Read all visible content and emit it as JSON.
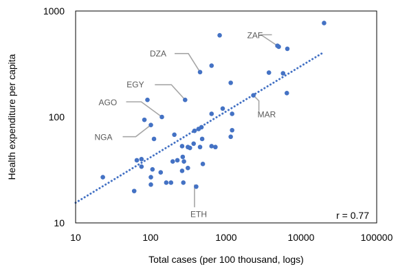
{
  "chart_data": {
    "type": "scatter",
    "xlabel": "Total cases (per 100 thousand, logs)",
    "ylabel": "Health expenditure per capita",
    "xscale": "log",
    "yscale": "log",
    "xlim": [
      10,
      100000
    ],
    "ylim": [
      10,
      1000
    ],
    "x_ticks": [
      "10",
      "100",
      "1000",
      "10000",
      "100000"
    ],
    "y_ticks": [
      "10",
      "100",
      "1000"
    ],
    "grid": false,
    "colors": {
      "points": "#4472c4",
      "trendline": "#4472c4",
      "annotation": "#a6a6a6",
      "frame": "#000000"
    },
    "trendline": {
      "style": "dotted",
      "x": [
        10,
        20000
      ],
      "y": [
        15.5,
        410
      ]
    },
    "correlation_label": "r = 0.77",
    "annotations": [
      {
        "label": "ZAF",
        "x": 4800,
        "y": 470
      },
      {
        "label": "DZA",
        "x": 450,
        "y": 265
      },
      {
        "label": "EGY",
        "x": 285,
        "y": 145
      },
      {
        "label": "AGO",
        "x": 140,
        "y": 100
      },
      {
        "label": "NGA",
        "x": 100,
        "y": 84
      },
      {
        "label": "MAR",
        "x": 2300,
        "y": 160
      },
      {
        "label": "ETH",
        "x": 380,
        "y": 23
      }
    ],
    "points": [
      [
        20000,
        770
      ],
      [
        820,
        590
      ],
      [
        4800,
        470
      ],
      [
        5000,
        460
      ],
      [
        6500,
        440
      ],
      [
        640,
        305
      ],
      [
        450,
        265
      ],
      [
        3700,
        262
      ],
      [
        5700,
        258
      ],
      [
        1150,
        210
      ],
      [
        6400,
        168
      ],
      [
        2300,
        160
      ],
      [
        285,
        145
      ],
      [
        90,
        145
      ],
      [
        900,
        120
      ],
      [
        640,
        107
      ],
      [
        1200,
        107
      ],
      [
        140,
        100
      ],
      [
        82,
        94
      ],
      [
        100,
        84
      ],
      [
        470,
        80
      ],
      [
        430,
        77
      ],
      [
        380,
        74
      ],
      [
        1200,
        75
      ],
      [
        205,
        68
      ],
      [
        1150,
        65
      ],
      [
        110,
        62
      ],
      [
        480,
        62
      ],
      [
        370,
        56
      ],
      [
        260,
        53
      ],
      [
        310,
        52
      ],
      [
        330,
        51
      ],
      [
        450,
        52
      ],
      [
        640,
        53
      ],
      [
        720,
        52
      ],
      [
        75,
        40
      ],
      [
        65,
        39
      ],
      [
        225,
        39
      ],
      [
        265,
        42
      ],
      [
        275,
        38
      ],
      [
        195,
        38
      ],
      [
        75,
        34
      ],
      [
        105,
        32
      ],
      [
        260,
        31
      ],
      [
        310,
        33
      ],
      [
        135,
        30
      ],
      [
        490,
        36
      ],
      [
        23,
        27
      ],
      [
        100,
        27
      ],
      [
        160,
        24
      ],
      [
        185,
        24
      ],
      [
        100,
        23
      ],
      [
        270,
        24
      ],
      [
        400,
        22
      ],
      [
        60,
        20
      ]
    ]
  }
}
